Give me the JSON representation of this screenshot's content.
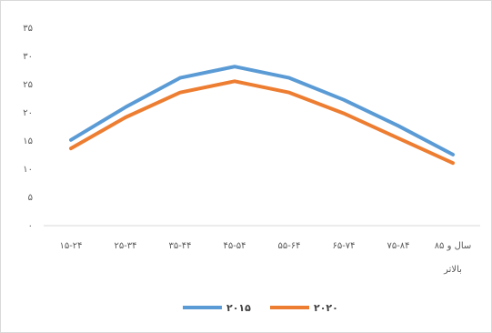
{
  "chart_data": {
    "type": "line",
    "title": "",
    "xlabel": "",
    "ylabel": "",
    "categories": [
      [
        "۱۵-۲۴"
      ],
      [
        "۲۵-۳۴"
      ],
      [
        "۳۵-۴۴"
      ],
      [
        "۴۵-۵۴"
      ],
      [
        "۵۵-۶۴"
      ],
      [
        "۶۵-۷۴"
      ],
      [
        "۷۵-۸۴"
      ],
      [
        "۸۵ سال و",
        "بالاتر"
      ]
    ],
    "y_ticks": [
      "۰",
      "۵",
      "۱۰",
      "۱۵",
      "۲۰",
      "۲۵",
      "۳۰",
      "۳۵"
    ],
    "ylim": [
      0,
      35
    ],
    "grid": false,
    "legend_position": "bottom",
    "series": [
      {
        "name": "۲۰۱۵",
        "color": "#5b9bd5",
        "values": [
          15.2,
          21,
          26.2,
          28.2,
          26.2,
          22.3,
          17.7,
          12.6
        ]
      },
      {
        "name": "۲۰۲۰",
        "color": "#ed7d31",
        "values": [
          13.7,
          19.2,
          23.6,
          25.6,
          23.6,
          19.9,
          15.5,
          11.1
        ]
      }
    ]
  }
}
